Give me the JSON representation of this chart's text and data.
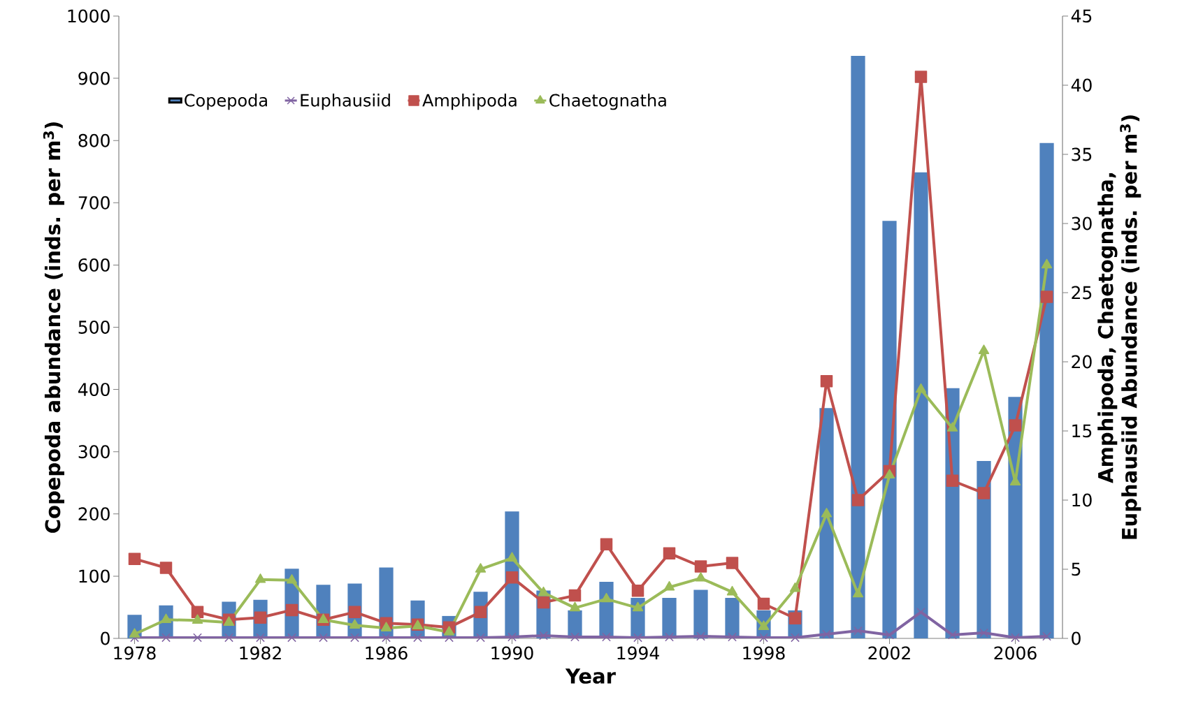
{
  "chart_data": {
    "type": "bar",
    "xlabel": "Year",
    "ylabel": "Copepoda abundance (inds. per m$^{3}$)",
    "y2label": "Amphipoda, Chaetognatha, Euphausiid Abundance (inds. per m$^{3}$)",
    "x": [
      1978,
      1979,
      1980,
      1981,
      1982,
      1983,
      1984,
      1985,
      1986,
      1987,
      1988,
      1989,
      1990,
      1991,
      1992,
      1993,
      1994,
      1995,
      1996,
      1997,
      1998,
      1999,
      2000,
      2001,
      2002,
      2003,
      2004,
      2005,
      2006,
      2007
    ],
    "xlim": [
      1977.5,
      2007.5
    ],
    "xticks": [
      1978,
      1982,
      1986,
      1990,
      1994,
      1998,
      2002,
      2006
    ],
    "ylim": [
      0,
      1000
    ],
    "yticks": [
      0,
      100,
      200,
      300,
      400,
      500,
      600,
      700,
      800,
      900,
      1000
    ],
    "y2lim": [
      0,
      45
    ],
    "y2ticks": [
      0,
      5,
      10,
      15,
      20,
      25,
      30,
      35,
      40,
      45
    ],
    "legend": "top left",
    "grid": false,
    "series": [
      {
        "name": "Copepoda",
        "color": "#4f81bd",
        "values": [
          38,
          53,
          null,
          59,
          62,
          112,
          86,
          88,
          114,
          61,
          36,
          75,
          204,
          77,
          45,
          91,
          65,
          65,
          78,
          65,
          45,
          45,
          370,
          936,
          671,
          749,
          402,
          285,
          388,
          796
        ]
      },
      {
        "name": "Euphausiid",
        "type": "line",
        "axis": "y2",
        "marker": "cross",
        "color": "#8064a2",
        "values": [
          0.05,
          0.05,
          0.05,
          0.05,
          0.05,
          0.05,
          0.05,
          0.05,
          0.05,
          0.05,
          0.05,
          0.05,
          0.1,
          0.2,
          0.1,
          0.1,
          0.05,
          0.1,
          0.15,
          0.1,
          0.05,
          0.05,
          0.3,
          0.55,
          0.25,
          1.9,
          0.25,
          0.4,
          0.05,
          0.15
        ]
      },
      {
        "name": "Amphipoda",
        "type": "line",
        "axis": "y2",
        "marker": "square",
        "color": "#c0504d",
        "values": [
          5.75,
          5.1,
          1.9,
          1.35,
          1.5,
          2.05,
          1.35,
          1.9,
          1.1,
          1.0,
          0.8,
          1.9,
          4.4,
          2.6,
          3.1,
          6.8,
          3.45,
          6.15,
          5.2,
          5.45,
          2.5,
          1.45,
          18.6,
          10.0,
          12.1,
          40.6,
          11.4,
          10.5,
          15.4,
          24.7
        ]
      },
      {
        "name": "Chaetognatha",
        "type": "line",
        "axis": "y2",
        "marker": "triangle",
        "color": "#9bbb59",
        "values": [
          0.3,
          1.35,
          1.3,
          1.15,
          4.25,
          4.2,
          1.35,
          0.95,
          0.75,
          0.9,
          0.45,
          5.0,
          5.8,
          3.3,
          2.2,
          2.85,
          2.2,
          3.7,
          4.35,
          3.35,
          0.85,
          3.6,
          9.0,
          3.2,
          11.8,
          18.0,
          15.2,
          20.8,
          11.3,
          27.0
        ]
      }
    ]
  }
}
